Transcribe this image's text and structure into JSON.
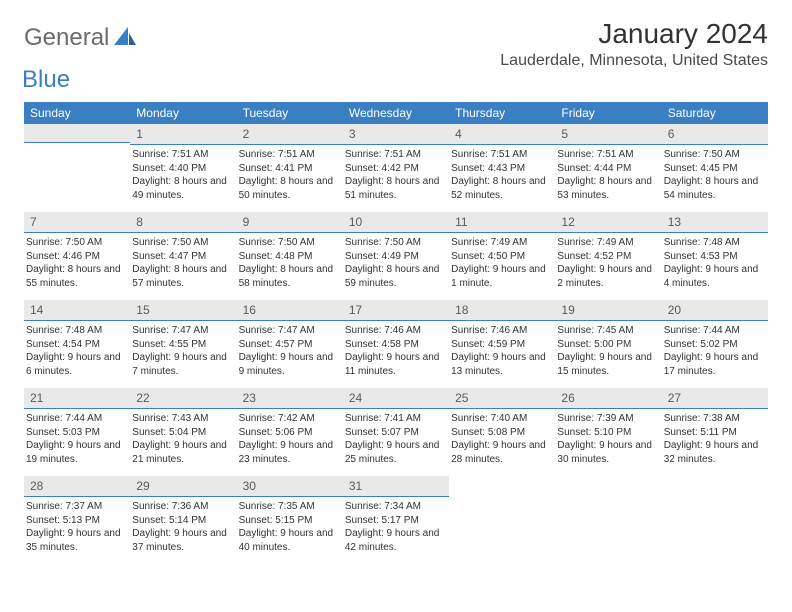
{
  "brand": {
    "general": "General",
    "blue": "Blue"
  },
  "title": "January 2024",
  "location": "Lauderdale, Minnesota, United States",
  "colors": {
    "header_bg": "#3a7fc4",
    "header_fg": "#ffffff",
    "daynum_bg": "#e9e9e9",
    "day_border": "#3a7fc4",
    "text": "#333333",
    "logo_gray": "#6b6b6b",
    "logo_blue": "#3a7fc4"
  },
  "weekdays": [
    "Sunday",
    "Monday",
    "Tuesday",
    "Wednesday",
    "Thursday",
    "Friday",
    "Saturday"
  ],
  "start_offset": 1,
  "days": [
    {
      "n": 1,
      "sr": "7:51 AM",
      "ss": "4:40 PM",
      "dl": "8 hours and 49 minutes."
    },
    {
      "n": 2,
      "sr": "7:51 AM",
      "ss": "4:41 PM",
      "dl": "8 hours and 50 minutes."
    },
    {
      "n": 3,
      "sr": "7:51 AM",
      "ss": "4:42 PM",
      "dl": "8 hours and 51 minutes."
    },
    {
      "n": 4,
      "sr": "7:51 AM",
      "ss": "4:43 PM",
      "dl": "8 hours and 52 minutes."
    },
    {
      "n": 5,
      "sr": "7:51 AM",
      "ss": "4:44 PM",
      "dl": "8 hours and 53 minutes."
    },
    {
      "n": 6,
      "sr": "7:50 AM",
      "ss": "4:45 PM",
      "dl": "8 hours and 54 minutes."
    },
    {
      "n": 7,
      "sr": "7:50 AM",
      "ss": "4:46 PM",
      "dl": "8 hours and 55 minutes."
    },
    {
      "n": 8,
      "sr": "7:50 AM",
      "ss": "4:47 PM",
      "dl": "8 hours and 57 minutes."
    },
    {
      "n": 9,
      "sr": "7:50 AM",
      "ss": "4:48 PM",
      "dl": "8 hours and 58 minutes."
    },
    {
      "n": 10,
      "sr": "7:50 AM",
      "ss": "4:49 PM",
      "dl": "8 hours and 59 minutes."
    },
    {
      "n": 11,
      "sr": "7:49 AM",
      "ss": "4:50 PM",
      "dl": "9 hours and 1 minute."
    },
    {
      "n": 12,
      "sr": "7:49 AM",
      "ss": "4:52 PM",
      "dl": "9 hours and 2 minutes."
    },
    {
      "n": 13,
      "sr": "7:48 AM",
      "ss": "4:53 PM",
      "dl": "9 hours and 4 minutes."
    },
    {
      "n": 14,
      "sr": "7:48 AM",
      "ss": "4:54 PM",
      "dl": "9 hours and 6 minutes."
    },
    {
      "n": 15,
      "sr": "7:47 AM",
      "ss": "4:55 PM",
      "dl": "9 hours and 7 minutes."
    },
    {
      "n": 16,
      "sr": "7:47 AM",
      "ss": "4:57 PM",
      "dl": "9 hours and 9 minutes."
    },
    {
      "n": 17,
      "sr": "7:46 AM",
      "ss": "4:58 PM",
      "dl": "9 hours and 11 minutes."
    },
    {
      "n": 18,
      "sr": "7:46 AM",
      "ss": "4:59 PM",
      "dl": "9 hours and 13 minutes."
    },
    {
      "n": 19,
      "sr": "7:45 AM",
      "ss": "5:00 PM",
      "dl": "9 hours and 15 minutes."
    },
    {
      "n": 20,
      "sr": "7:44 AM",
      "ss": "5:02 PM",
      "dl": "9 hours and 17 minutes."
    },
    {
      "n": 21,
      "sr": "7:44 AM",
      "ss": "5:03 PM",
      "dl": "9 hours and 19 minutes."
    },
    {
      "n": 22,
      "sr": "7:43 AM",
      "ss": "5:04 PM",
      "dl": "9 hours and 21 minutes."
    },
    {
      "n": 23,
      "sr": "7:42 AM",
      "ss": "5:06 PM",
      "dl": "9 hours and 23 minutes."
    },
    {
      "n": 24,
      "sr": "7:41 AM",
      "ss": "5:07 PM",
      "dl": "9 hours and 25 minutes."
    },
    {
      "n": 25,
      "sr": "7:40 AM",
      "ss": "5:08 PM",
      "dl": "9 hours and 28 minutes."
    },
    {
      "n": 26,
      "sr": "7:39 AM",
      "ss": "5:10 PM",
      "dl": "9 hours and 30 minutes."
    },
    {
      "n": 27,
      "sr": "7:38 AM",
      "ss": "5:11 PM",
      "dl": "9 hours and 32 minutes."
    },
    {
      "n": 28,
      "sr": "7:37 AM",
      "ss": "5:13 PM",
      "dl": "9 hours and 35 minutes."
    },
    {
      "n": 29,
      "sr": "7:36 AM",
      "ss": "5:14 PM",
      "dl": "9 hours and 37 minutes."
    },
    {
      "n": 30,
      "sr": "7:35 AM",
      "ss": "5:15 PM",
      "dl": "9 hours and 40 minutes."
    },
    {
      "n": 31,
      "sr": "7:34 AM",
      "ss": "5:17 PM",
      "dl": "9 hours and 42 minutes."
    }
  ],
  "labels": {
    "sunrise": "Sunrise:",
    "sunset": "Sunset:",
    "daylight": "Daylight:"
  }
}
